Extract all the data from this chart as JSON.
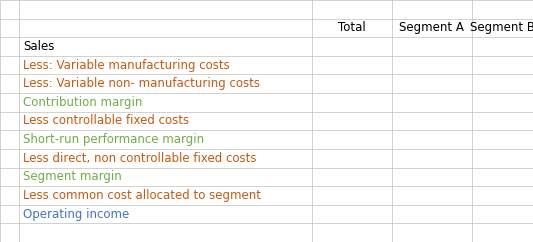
{
  "header_row": [
    "",
    "",
    "Total",
    "Segment A",
    "Segment B",
    ""
  ],
  "rows": [
    "Sales",
    "Less: Variable manufacturing costs",
    "Less: Variable non- manufacturing costs",
    "Contribution margin",
    "Less controllable fixed costs",
    "Short-run performance margin",
    "Less direct, non controllable fixed costs",
    "Segment margin",
    "Less common cost allocated to segment",
    "Operating income"
  ],
  "row_colors": [
    "#000000",
    "#c55a11",
    "#c55a11",
    "#70ad47",
    "#c55a11",
    "#70ad47",
    "#c55a11",
    "#70ad47",
    "#c55a11",
    "#4472c4"
  ],
  "grid_color": "#bfbfbf",
  "header_text_color": "#000000",
  "bg_color": "#ffffff",
  "col_boundaries": [
    0.0,
    0.035,
    0.585,
    0.735,
    0.885,
    1.0
  ],
  "n_rows": 13,
  "font_size": 8.5,
  "fig_width": 5.33,
  "fig_height": 2.42
}
